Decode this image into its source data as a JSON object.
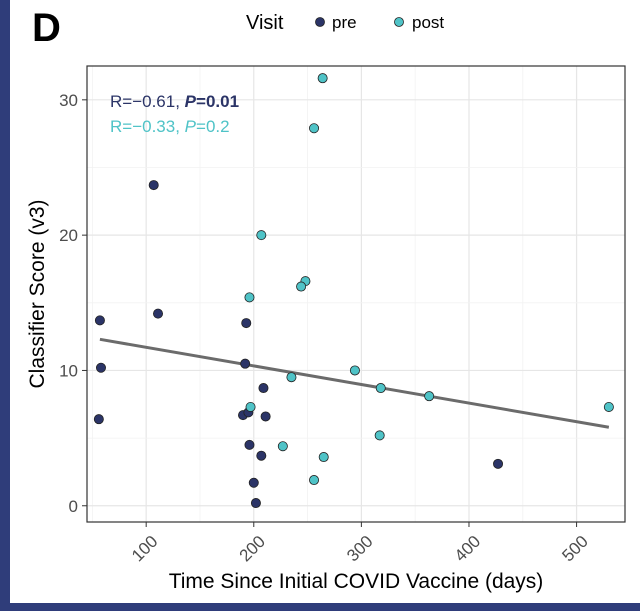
{
  "panel_label": "D",
  "chart_data": {
    "type": "scatter",
    "xlabel": "Time Since Initial COVID Vaccine (days)",
    "ylabel": "Classifier Score (v3)",
    "xlim": [
      45,
      545
    ],
    "ylim": [
      -1.2,
      32.5
    ],
    "x_ticks": [
      100,
      200,
      300,
      400,
      500
    ],
    "y_ticks": [
      0,
      10,
      20,
      30
    ],
    "x_tick_labels": [
      "100",
      "200",
      "300",
      "400",
      "500"
    ],
    "y_tick_labels": [
      "0",
      "10",
      "20",
      "30"
    ],
    "grid": true,
    "legend": {
      "title": "Visit",
      "placement": "top",
      "entries": [
        {
          "label": "pre",
          "color": "#2b3467"
        },
        {
          "label": "post",
          "color": "#4fc3c7"
        }
      ]
    },
    "series": [
      {
        "name": "pre",
        "color": "#2b3467",
        "points": [
          [
            57,
            13.7
          ],
          [
            58,
            10.2
          ],
          [
            56,
            6.4
          ],
          [
            107,
            23.7
          ],
          [
            111,
            14.2
          ],
          [
            193,
            13.5
          ],
          [
            192,
            10.5
          ],
          [
            190,
            6.7
          ],
          [
            195,
            6.9
          ],
          [
            196,
            4.5
          ],
          [
            200,
            1.7
          ],
          [
            202,
            0.2
          ],
          [
            207,
            3.7
          ],
          [
            209,
            8.7
          ],
          [
            211,
            6.6
          ],
          [
            427,
            3.1
          ]
        ]
      },
      {
        "name": "post",
        "color": "#4fc3c7",
        "points": [
          [
            264,
            31.6
          ],
          [
            256,
            27.9
          ],
          [
            207,
            20.0
          ],
          [
            248,
            16.6
          ],
          [
            244,
            16.2
          ],
          [
            196,
            15.4
          ],
          [
            197,
            7.3
          ],
          [
            235,
            9.5
          ],
          [
            227,
            4.4
          ],
          [
            265,
            3.6
          ],
          [
            256,
            1.9
          ],
          [
            294,
            10.0
          ],
          [
            318,
            8.7
          ],
          [
            317,
            5.2
          ],
          [
            363,
            8.1
          ],
          [
            530,
            7.3
          ]
        ]
      }
    ],
    "trend_line": {
      "x": [
        57,
        530
      ],
      "y": [
        12.3,
        5.8
      ],
      "color": "#6b6b6b"
    },
    "annotations": [
      {
        "text": "R=−0.61, ",
        "p_label": "P",
        "p_value": "=0.01",
        "color": "#2b3467",
        "bold_p": true
      },
      {
        "text": "R=−0.33, ",
        "p_label": "P",
        "p_value": "=0.2",
        "color": "#4fc3c7",
        "bold_p": false
      }
    ]
  }
}
